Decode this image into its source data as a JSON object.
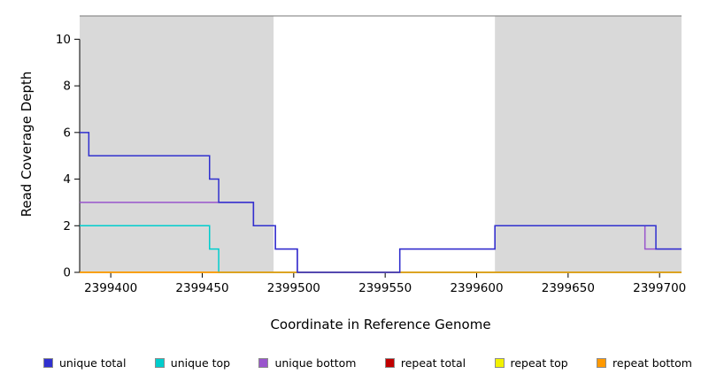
{
  "chart_data": {
    "type": "line",
    "step": true,
    "title": "",
    "xlabel": "Coordinate in Reference Genome",
    "ylabel": "Read Coverage Depth",
    "xlim": [
      2399383,
      2399712
    ],
    "ylim": [
      0,
      11
    ],
    "xticks": [
      2399400,
      2399450,
      2399500,
      2399550,
      2399600,
      2399650,
      2399700
    ],
    "yticks": [
      0,
      2,
      4,
      6,
      8,
      10
    ],
    "grid": false,
    "top_border_color": "#777777",
    "shaded_regions": [
      {
        "x0": 2399383,
        "x1": 2399489,
        "color": "#d9d9d9"
      },
      {
        "x0": 2399610,
        "x1": 2399712,
        "color": "#d9d9d9"
      }
    ],
    "series": [
      {
        "name": "repeat total",
        "color": "#c00000",
        "steps": [
          [
            2399383,
            0
          ]
        ]
      },
      {
        "name": "repeat top",
        "color": "#f2f200",
        "steps": [
          [
            2399383,
            0
          ]
        ]
      },
      {
        "name": "unique top",
        "color": "#00cdcd",
        "steps": [
          [
            2399383,
            2
          ],
          [
            2399454,
            1
          ],
          [
            2399459,
            0
          ]
        ]
      },
      {
        "name": "unique bottom",
        "color": "#9955cc",
        "steps": [
          [
            2399383,
            3
          ],
          [
            2399478,
            2
          ],
          [
            2399490,
            1
          ],
          [
            2399502,
            0
          ],
          [
            2399558,
            1
          ],
          [
            2399610,
            2
          ],
          [
            2399692,
            1
          ]
        ]
      },
      {
        "name": "repeat bottom",
        "color": "#ff9900",
        "steps": [
          [
            2399383,
            0
          ]
        ]
      },
      {
        "name": "unique total",
        "color": "#3030cf",
        "steps": [
          [
            2399383,
            6
          ],
          [
            2399388,
            5
          ],
          [
            2399454,
            4
          ],
          [
            2399459,
            3
          ],
          [
            2399478,
            2
          ],
          [
            2399490,
            1
          ],
          [
            2399502,
            0
          ],
          [
            2399558,
            1
          ],
          [
            2399610,
            2
          ],
          [
            2399698,
            1
          ]
        ]
      }
    ],
    "legend": [
      {
        "label": "unique total",
        "color": "#3030cf"
      },
      {
        "label": "unique top",
        "color": "#00cdcd"
      },
      {
        "label": "unique bottom",
        "color": "#9955cc"
      },
      {
        "label": "repeat total",
        "color": "#c00000"
      },
      {
        "label": "repeat top",
        "color": "#f2f200"
      },
      {
        "label": "repeat bottom",
        "color": "#ff9900"
      }
    ]
  }
}
